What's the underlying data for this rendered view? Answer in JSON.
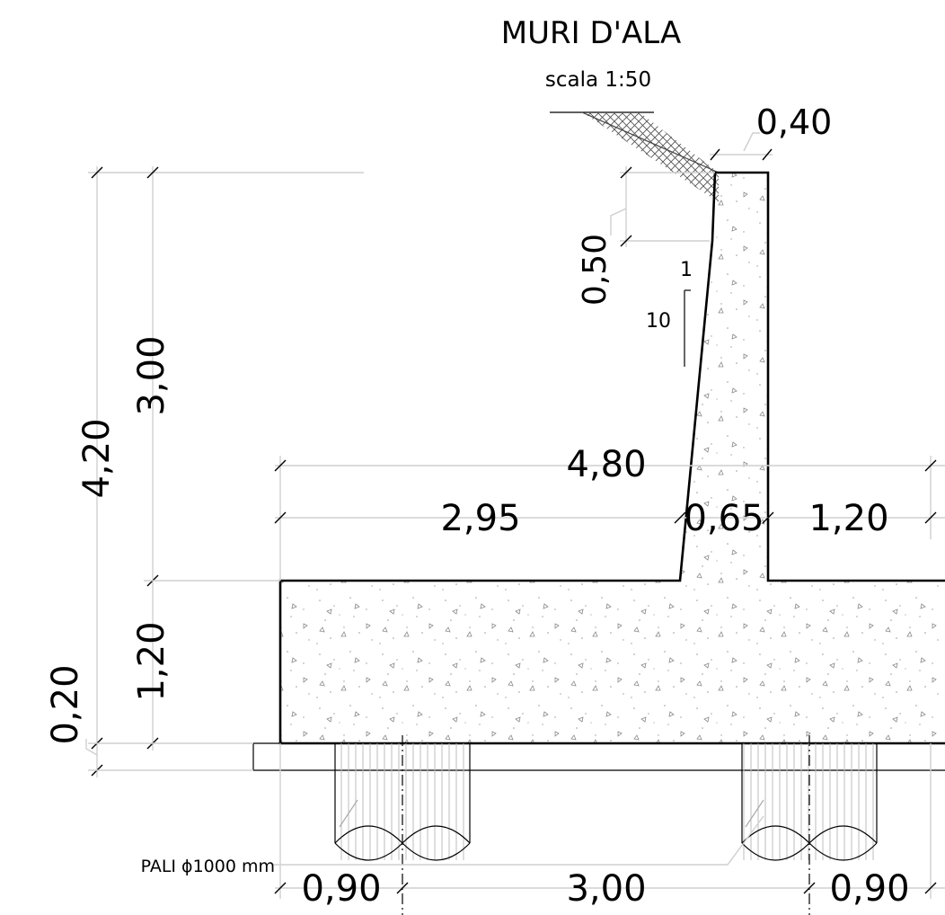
{
  "title": "MURI D'ALA",
  "scale": "scala 1:50",
  "dimensions": {
    "top_width": "0,40",
    "top_height": "0,50",
    "slope_rise": "1",
    "slope_run": "10",
    "total_height": "4,20",
    "stem_height": "3,00",
    "base_width": "4,80",
    "heel": "2,95",
    "stem_base": "0,65",
    "toe": "1,20",
    "base_height": "1,20",
    "blinding": "0,20",
    "pile_edge_left": "0,90",
    "pile_spacing": "3,00",
    "pile_edge_right": "0,90"
  },
  "piles_label": "PALI ϕ1000 mm"
}
